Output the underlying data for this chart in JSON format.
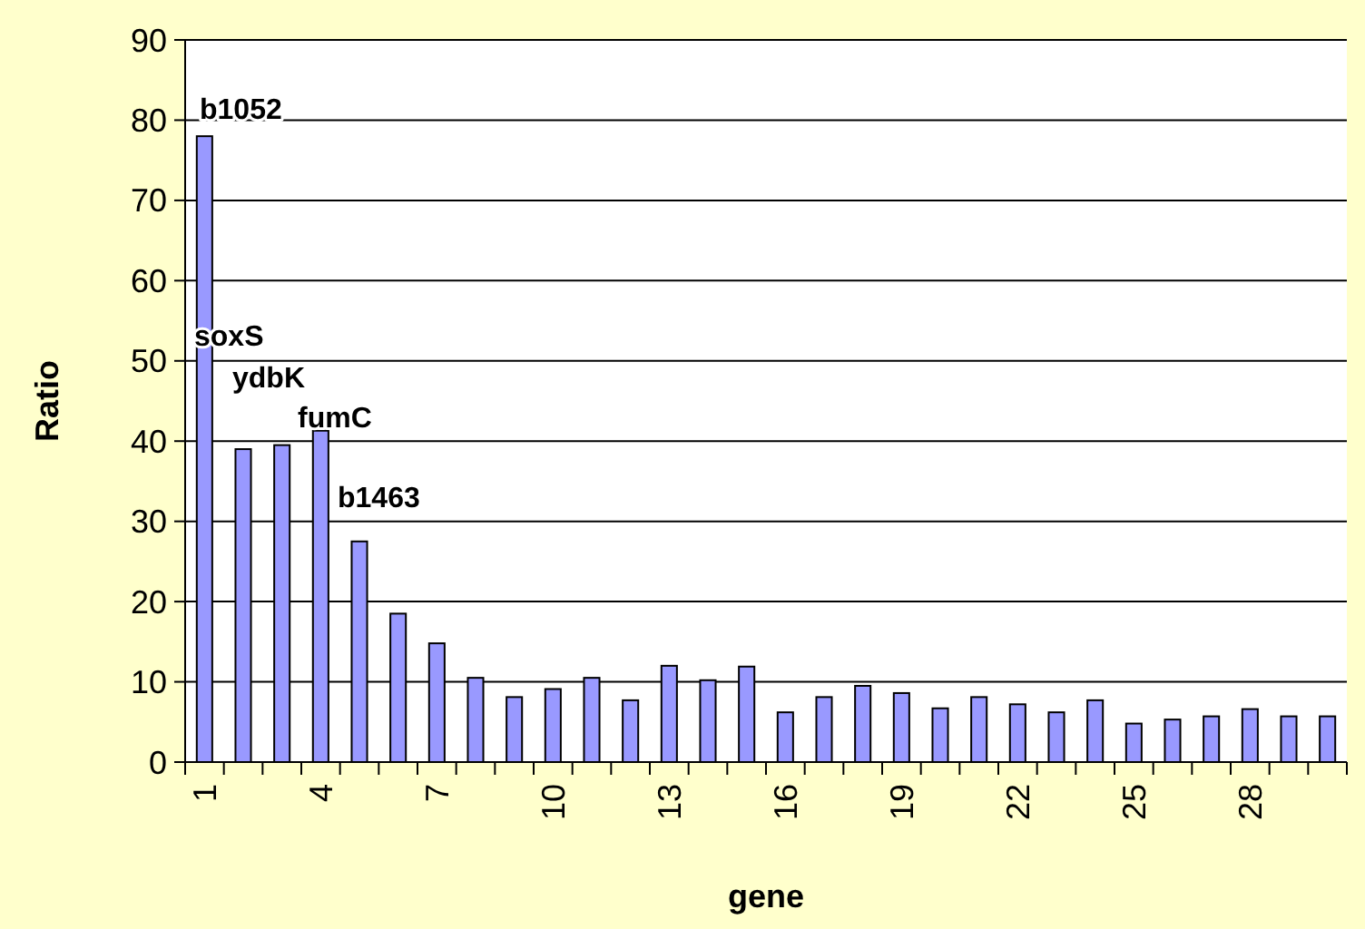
{
  "chart_data": {
    "type": "bar",
    "xlabel": "gene",
    "ylabel": "Ratio",
    "color": "#9999ff",
    "x": [
      1,
      2,
      3,
      4,
      5,
      6,
      7,
      8,
      9,
      10,
      11,
      12,
      13,
      14,
      15,
      16,
      17,
      18,
      19,
      20,
      21,
      22,
      23,
      24,
      25,
      26,
      27,
      28,
      29,
      30
    ],
    "values": [
      78,
      39,
      39.5,
      41.3,
      27.5,
      18.5,
      14.8,
      10.5,
      8.1,
      9.1,
      10.5,
      7.7,
      12,
      10.2,
      11.9,
      6.2,
      8.1,
      9.5,
      8.6,
      6.7,
      8.1,
      7.2,
      6.2,
      7.7,
      4.8,
      5.3,
      5.7,
      6.6,
      5.7,
      5.7
    ],
    "xlim": [
      0.5,
      30.5
    ],
    "xticks": [
      1,
      4,
      7,
      10,
      13,
      16,
      19,
      22,
      25,
      28
    ],
    "ylim": [
      0,
      90
    ],
    "yticks": [
      0,
      10,
      20,
      30,
      40,
      50,
      60,
      70,
      80,
      90
    ],
    "grid": "y",
    "annotations": [
      "b1052",
      "soxS",
      "ydbK",
      "fumC",
      "b1463"
    ]
  }
}
